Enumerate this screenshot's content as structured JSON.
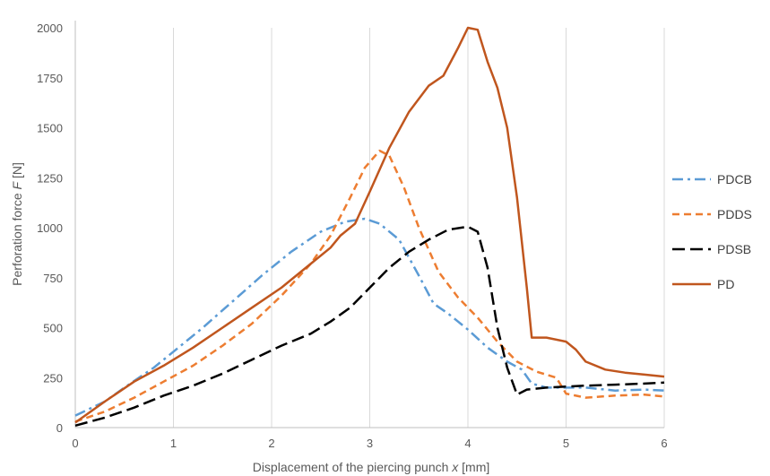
{
  "chart_data": {
    "type": "line",
    "title": "",
    "xlabel": {
      "prefix": "Displacement of the piercing punch ",
      "var": "x",
      "suffix": " [mm]"
    },
    "ylabel": {
      "prefix": "Perforation force ",
      "var": "F",
      "suffix": " [N]"
    },
    "xlim": [
      0,
      6
    ],
    "ylim": [
      0,
      2000
    ],
    "xticks": [
      0,
      1,
      2,
      3,
      4,
      5,
      6
    ],
    "yticks": [
      0,
      250,
      500,
      750,
      1000,
      1250,
      1500,
      1750,
      2000
    ],
    "grid": "vertical",
    "legend": "right",
    "series": [
      {
        "name": "PDCB",
        "color": "#5B9BD5",
        "style": "dashdot",
        "points": [
          [
            0,
            60
          ],
          [
            0.3,
            130
          ],
          [
            0.5,
            200
          ],
          [
            0.8,
            300
          ],
          [
            1.0,
            380
          ],
          [
            1.3,
            500
          ],
          [
            1.6,
            630
          ],
          [
            1.9,
            760
          ],
          [
            2.2,
            880
          ],
          [
            2.5,
            980
          ],
          [
            2.75,
            1030
          ],
          [
            2.95,
            1045
          ],
          [
            3.1,
            1020
          ],
          [
            3.3,
            940
          ],
          [
            3.5,
            760
          ],
          [
            3.65,
            620
          ],
          [
            3.8,
            570
          ],
          [
            4.0,
            490
          ],
          [
            4.2,
            400
          ],
          [
            4.4,
            330
          ],
          [
            4.55,
            290
          ],
          [
            4.65,
            220
          ],
          [
            4.8,
            200
          ],
          [
            5.0,
            200
          ],
          [
            5.2,
            200
          ],
          [
            5.5,
            185
          ],
          [
            5.8,
            190
          ],
          [
            6.0,
            185
          ]
        ]
      },
      {
        "name": "PDDS",
        "color": "#ED7D31",
        "style": "dashed",
        "points": [
          [
            0,
            30
          ],
          [
            0.3,
            80
          ],
          [
            0.6,
            150
          ],
          [
            0.9,
            230
          ],
          [
            1.2,
            310
          ],
          [
            1.5,
            410
          ],
          [
            1.8,
            520
          ],
          [
            2.1,
            660
          ],
          [
            2.4,
            820
          ],
          [
            2.6,
            960
          ],
          [
            2.8,
            1150
          ],
          [
            2.95,
            1300
          ],
          [
            3.1,
            1385
          ],
          [
            3.2,
            1360
          ],
          [
            3.35,
            1200
          ],
          [
            3.5,
            1000
          ],
          [
            3.7,
            780
          ],
          [
            3.9,
            650
          ],
          [
            4.1,
            550
          ],
          [
            4.3,
            430
          ],
          [
            4.5,
            330
          ],
          [
            4.7,
            280
          ],
          [
            4.9,
            250
          ],
          [
            5.0,
            170
          ],
          [
            5.2,
            150
          ],
          [
            5.5,
            160
          ],
          [
            5.8,
            165
          ],
          [
            6.0,
            155
          ]
        ]
      },
      {
        "name": "PDSB",
        "color": "#000000",
        "style": "longdash",
        "points": [
          [
            0,
            10
          ],
          [
            0.3,
            50
          ],
          [
            0.6,
            100
          ],
          [
            0.9,
            160
          ],
          [
            1.2,
            210
          ],
          [
            1.5,
            270
          ],
          [
            1.8,
            340
          ],
          [
            2.1,
            410
          ],
          [
            2.4,
            470
          ],
          [
            2.6,
            530
          ],
          [
            2.8,
            600
          ],
          [
            3.0,
            700
          ],
          [
            3.2,
            800
          ],
          [
            3.4,
            880
          ],
          [
            3.6,
            940
          ],
          [
            3.8,
            990
          ],
          [
            4.0,
            1005
          ],
          [
            4.1,
            980
          ],
          [
            4.2,
            800
          ],
          [
            4.3,
            500
          ],
          [
            4.4,
            300
          ],
          [
            4.5,
            165
          ],
          [
            4.6,
            190
          ],
          [
            4.8,
            200
          ],
          [
            5.0,
            205
          ],
          [
            5.2,
            210
          ],
          [
            5.5,
            215
          ],
          [
            5.8,
            220
          ],
          [
            6.0,
            225
          ]
        ]
      },
      {
        "name": "PD",
        "color": "#C0561E",
        "style": "solid",
        "points": [
          [
            0,
            25
          ],
          [
            0.3,
            130
          ],
          [
            0.6,
            230
          ],
          [
            0.9,
            310
          ],
          [
            1.2,
            400
          ],
          [
            1.5,
            500
          ],
          [
            1.8,
            600
          ],
          [
            2.1,
            700
          ],
          [
            2.4,
            820
          ],
          [
            2.6,
            900
          ],
          [
            2.7,
            960
          ],
          [
            2.85,
            1020
          ],
          [
            3.0,
            1180
          ],
          [
            3.2,
            1400
          ],
          [
            3.4,
            1580
          ],
          [
            3.6,
            1710
          ],
          [
            3.75,
            1760
          ],
          [
            3.9,
            1900
          ],
          [
            4.0,
            2000
          ],
          [
            4.1,
            1990
          ],
          [
            4.2,
            1830
          ],
          [
            4.3,
            1700
          ],
          [
            4.4,
            1500
          ],
          [
            4.5,
            1150
          ],
          [
            4.6,
            700
          ],
          [
            4.65,
            450
          ],
          [
            4.8,
            450
          ],
          [
            5.0,
            430
          ],
          [
            5.1,
            390
          ],
          [
            5.2,
            330
          ],
          [
            5.4,
            290
          ],
          [
            5.6,
            275
          ],
          [
            5.8,
            265
          ],
          [
            6.0,
            255
          ]
        ]
      }
    ]
  }
}
